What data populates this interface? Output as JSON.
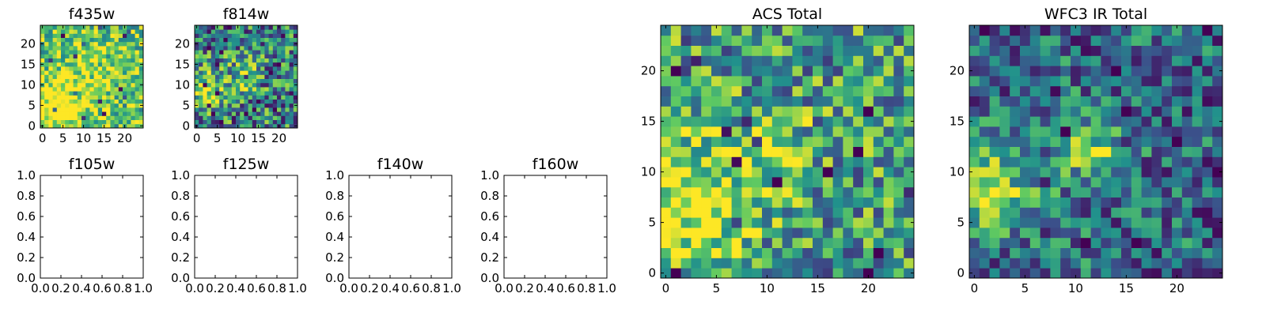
{
  "chart_data": [
    {
      "type": "heatmap",
      "title": "f435w",
      "xticks": [
        "0",
        "5",
        "10",
        "15",
        "20"
      ],
      "yticks": [
        "0",
        "5",
        "10",
        "15",
        "20"
      ],
      "xlim": [
        -0.5,
        24.5
      ],
      "ylim": [
        -0.5,
        24.5
      ],
      "grid": false,
      "colormap": "viridis",
      "seed": 11,
      "blobs": [
        {
          "x": 3,
          "y": 4,
          "r": 5,
          "amp": 0.35
        },
        {
          "x": 12,
          "y": 12,
          "r": 8,
          "amp": 0.15
        }
      ],
      "base": 0.68,
      "noise": 0.32
    },
    {
      "type": "heatmap",
      "title": "f814w",
      "xticks": [
        "0",
        "5",
        "10",
        "15",
        "20"
      ],
      "yticks": [
        "0",
        "5",
        "10",
        "15",
        "20"
      ],
      "xlim": [
        -0.5,
        24.5
      ],
      "ylim": [
        -0.5,
        24.5
      ],
      "grid": false,
      "colormap": "viridis",
      "seed": 23,
      "blobs": [
        {
          "x": 2,
          "y": 8,
          "r": 3,
          "amp": 0.45
        },
        {
          "x": 10,
          "y": 12,
          "r": 4,
          "amp": 0.25
        }
      ],
      "base": 0.45,
      "noise": 0.42
    },
    {
      "type": "heatmap",
      "title": "f105w",
      "xticks": [
        "0.0",
        "0.2",
        "0.4",
        "0.6",
        "0.8",
        "1.0"
      ],
      "yticks": [
        "0.0",
        "0.2",
        "0.4",
        "0.6",
        "0.8",
        "1.0"
      ],
      "xlim": [
        0,
        1
      ],
      "ylim": [
        0,
        1
      ],
      "grid": false,
      "empty": true
    },
    {
      "type": "heatmap",
      "title": "f125w",
      "xticks": [
        "0.0",
        "0.2",
        "0.4",
        "0.6",
        "0.8",
        "1.0"
      ],
      "yticks": [
        "0.0",
        "0.2",
        "0.4",
        "0.6",
        "0.8",
        "1.0"
      ],
      "xlim": [
        0,
        1
      ],
      "ylim": [
        0,
        1
      ],
      "grid": false,
      "empty": true
    },
    {
      "type": "heatmap",
      "title": "f140w",
      "xticks": [
        "0.0",
        "0.2",
        "0.4",
        "0.6",
        "0.8",
        "1.0"
      ],
      "yticks": [
        "0.0",
        "0.2",
        "0.4",
        "0.6",
        "0.8",
        "1.0"
      ],
      "xlim": [
        0,
        1
      ],
      "ylim": [
        0,
        1
      ],
      "grid": false,
      "empty": true
    },
    {
      "type": "heatmap",
      "title": "f160w",
      "xticks": [
        "0.0",
        "0.2",
        "0.4",
        "0.6",
        "0.8",
        "1.0"
      ],
      "yticks": [
        "0.0",
        "0.2",
        "0.4",
        "0.6",
        "0.8",
        "1.0"
      ],
      "xlim": [
        0,
        1
      ],
      "ylim": [
        0,
        1
      ],
      "grid": false,
      "empty": true
    },
    {
      "type": "heatmap",
      "title": "ACS Total",
      "xticks": [
        "0",
        "5",
        "10",
        "15",
        "20"
      ],
      "yticks": [
        "0",
        "5",
        "10",
        "15",
        "20"
      ],
      "xlim": [
        -0.5,
        24.5
      ],
      "ylim": [
        -0.5,
        24.5
      ],
      "grid": false,
      "colormap": "viridis",
      "seed": 37,
      "blobs": [
        {
          "x": 3,
          "y": 8,
          "r": 4,
          "amp": 0.4
        },
        {
          "x": 11,
          "y": 12,
          "r": 2.5,
          "amp": 0.3
        },
        {
          "x": 3,
          "y": 3,
          "r": 3,
          "amp": 0.2
        }
      ],
      "base": 0.55,
      "noise": 0.38
    },
    {
      "type": "heatmap",
      "title": "WFC3 IR Total",
      "xticks": [
        "0",
        "5",
        "10",
        "15",
        "20"
      ],
      "yticks": [
        "0",
        "5",
        "10",
        "15",
        "20"
      ],
      "xlim": [
        -0.5,
        24.5
      ],
      "ylim": [
        -0.5,
        24.5
      ],
      "grid": false,
      "colormap": "viridis",
      "seed": 53,
      "blobs": [
        {
          "x": 1.5,
          "y": 8.5,
          "r": 2.5,
          "amp": 0.55
        },
        {
          "x": 12,
          "y": 12,
          "r": 2,
          "amp": 0.4
        },
        {
          "x": 7,
          "y": 10,
          "r": 5,
          "amp": 0.1
        }
      ],
      "base": 0.35,
      "noise": 0.32
    }
  ],
  "colormap_colors": [
    "#440154",
    "#3b528b",
    "#21918c",
    "#5ec962",
    "#fde725"
  ]
}
